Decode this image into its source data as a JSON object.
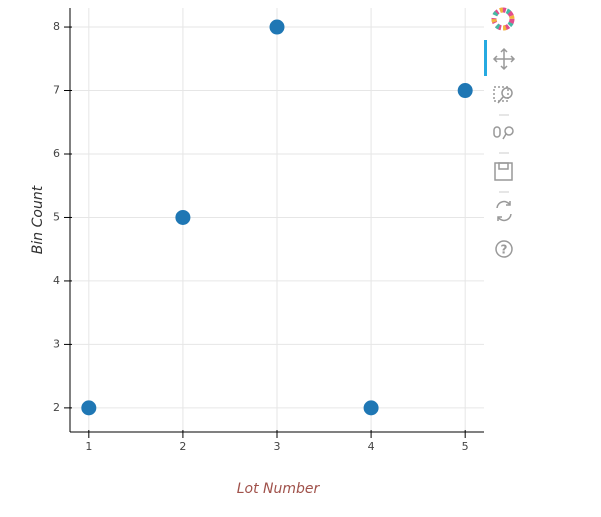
{
  "chart_data": {
    "type": "scatter",
    "x_label": "Lot Number",
    "y_label": "Bin Count",
    "x": [
      1,
      2,
      3,
      4,
      5
    ],
    "values": [
      2,
      5,
      8,
      2,
      7
    ],
    "color": "#1f77b4",
    "xlim": [
      0.8,
      5.2
    ],
    "ylim": [
      1.62,
      8.3
    ],
    "xticks": [
      1,
      2,
      3,
      4,
      5
    ],
    "yticks": [
      2,
      3,
      4,
      5,
      6,
      7,
      8
    ],
    "grid": true
  }
}
